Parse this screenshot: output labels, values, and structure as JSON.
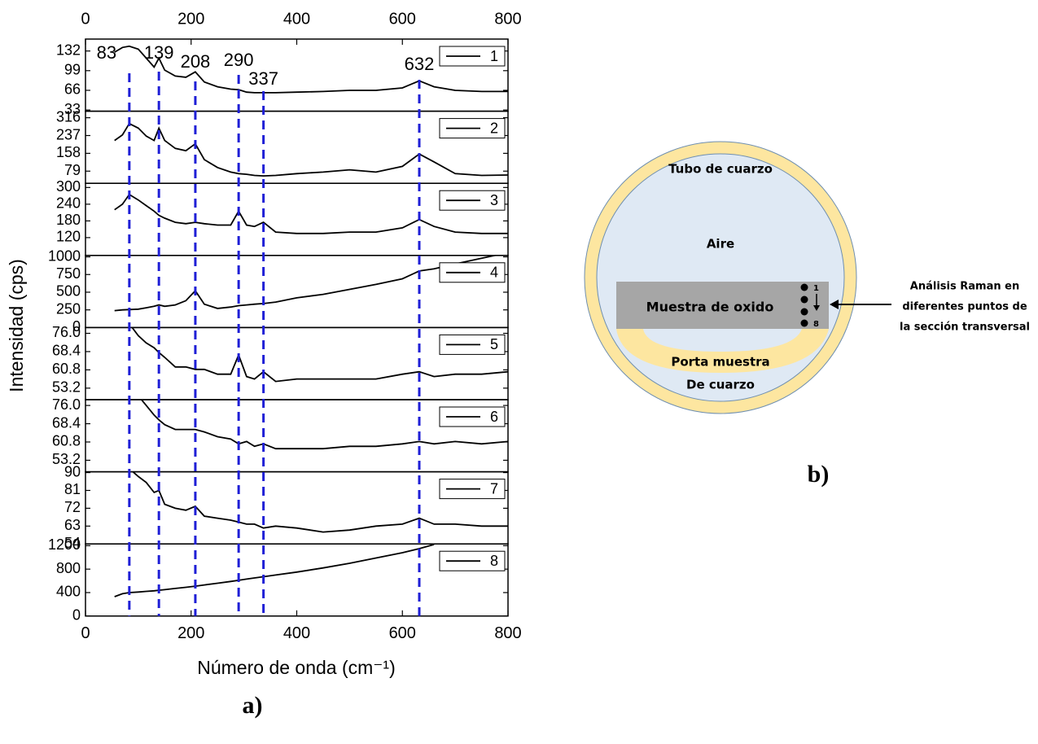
{
  "chart_data": [
    {
      "type": "line",
      "x": [
        55,
        70,
        83,
        100,
        115,
        130,
        139,
        150,
        170,
        190,
        208,
        225,
        250,
        275,
        290,
        305,
        320,
        337,
        360,
        400,
        450,
        500,
        550,
        600,
        632,
        660,
        700,
        750,
        800
      ],
      "series": [
        {
          "name": "1",
          "color": "#000000",
          "values": [
            130,
            138,
            140,
            135,
            120,
            105,
            120,
            100,
            90,
            88,
            97,
            80,
            72,
            68,
            67,
            63,
            62,
            62,
            62,
            63,
            64,
            66,
            66,
            70,
            82,
            72,
            66,
            64,
            64
          ]
        }
      ],
      "xlim": [
        0,
        800
      ],
      "xticks": [
        0,
        200,
        400,
        600,
        800
      ],
      "ylim": [
        31,
        152
      ],
      "yticks": [
        33,
        66,
        99,
        132
      ],
      "legend": "upper right"
    },
    {
      "type": "line",
      "x": [
        55,
        70,
        83,
        100,
        115,
        130,
        139,
        150,
        170,
        190,
        208,
        225,
        250,
        275,
        290,
        305,
        320,
        337,
        360,
        400,
        450,
        500,
        550,
        600,
        632,
        660,
        700,
        750,
        800
      ],
      "series": [
        {
          "name": "2",
          "color": "#000000",
          "values": [
            215,
            240,
            290,
            270,
            235,
            215,
            270,
            215,
            180,
            170,
            200,
            130,
            95,
            75,
            68,
            65,
            60,
            58,
            60,
            68,
            75,
            85,
            75,
            100,
            155,
            120,
            68,
            60,
            62
          ]
        }
      ],
      "xlim": [
        0,
        800
      ],
      "ylim": [
        25,
        345
      ],
      "yticks": [
        79,
        158,
        237,
        316
      ],
      "legend": "upper right"
    },
    {
      "type": "line",
      "x": [
        55,
        70,
        83,
        100,
        115,
        130,
        139,
        150,
        170,
        190,
        208,
        225,
        250,
        275,
        290,
        305,
        320,
        337,
        360,
        400,
        450,
        500,
        550,
        600,
        632,
        660,
        700,
        750,
        800
      ],
      "series": [
        {
          "name": "3",
          "color": "#000000",
          "values": [
            220,
            240,
            275,
            255,
            235,
            215,
            200,
            190,
            175,
            170,
            175,
            170,
            165,
            165,
            215,
            165,
            160,
            175,
            140,
            135,
            135,
            140,
            140,
            155,
            185,
            160,
            140,
            135,
            135
          ]
        }
      ],
      "xlim": [
        0,
        800
      ],
      "ylim": [
        56,
        315
      ],
      "yticks": [
        120,
        180,
        240,
        300
      ],
      "legend": "upper right"
    },
    {
      "type": "line",
      "x": [
        55,
        70,
        83,
        100,
        115,
        130,
        139,
        150,
        170,
        190,
        208,
        225,
        250,
        275,
        290,
        305,
        320,
        337,
        360,
        400,
        450,
        500,
        550,
        600,
        632,
        660,
        700,
        750,
        800
      ],
      "series": [
        {
          "name": "4",
          "color": "#000000",
          "values": [
            240,
            250,
            255,
            260,
            280,
            300,
            320,
            300,
            320,
            380,
            520,
            330,
            270,
            290,
            310,
            320,
            330,
            340,
            360,
            420,
            470,
            540,
            610,
            690,
            800,
            830,
            900,
            980,
            1060
          ]
        }
      ],
      "xlim": [
        0,
        800
      ],
      "ylim": [
        0,
        1020
      ],
      "yticks": [
        0,
        250,
        500,
        750,
        1000
      ],
      "legend": "upper right"
    },
    {
      "type": "line",
      "x": [
        55,
        70,
        83,
        100,
        115,
        130,
        139,
        150,
        170,
        190,
        208,
        225,
        250,
        275,
        290,
        305,
        320,
        337,
        360,
        400,
        450,
        500,
        550,
        600,
        632,
        660,
        700,
        750,
        800
      ],
      "series": [
        {
          "name": "5",
          "color": "#000000",
          "values": [
            null,
            null,
            80,
            75,
            72,
            70,
            68,
            66,
            62,
            62,
            61,
            61,
            59,
            59,
            67,
            58,
            57,
            60,
            56,
            57,
            57,
            57,
            57,
            59,
            60,
            58,
            59,
            59,
            60
          ]
        }
      ],
      "xlim": [
        0,
        800
      ],
      "ylim": [
        48.4,
        78.4
      ],
      "yticks": [
        53.2,
        60.8,
        68.4,
        {
          "value": 76,
          "label": "76.0"
        }
      ],
      "legend": "upper right"
    },
    {
      "type": "line",
      "x": [
        55,
        70,
        83,
        100,
        115,
        130,
        139,
        150,
        170,
        190,
        208,
        225,
        250,
        275,
        290,
        305,
        320,
        337,
        360,
        400,
        450,
        500,
        550,
        600,
        632,
        660,
        700,
        750,
        800
      ],
      "series": [
        {
          "name": "6",
          "color": "#000000",
          "values": [
            null,
            null,
            null,
            80,
            76,
            72,
            70,
            68,
            66,
            66,
            66,
            65,
            63,
            62,
            60,
            61,
            59,
            60,
            58,
            58,
            58,
            59,
            59,
            60,
            61,
            60,
            61,
            60,
            61
          ]
        }
      ],
      "xlim": [
        0,
        800
      ],
      "ylim": [
        48.4,
        78.4
      ],
      "yticks": [
        53.2,
        60.8,
        68.4,
        {
          "value": 76,
          "label": "76.0"
        }
      ],
      "legend": "upper right"
    },
    {
      "type": "line",
      "x": [
        55,
        70,
        83,
        100,
        115,
        130,
        139,
        150,
        170,
        190,
        208,
        225,
        250,
        275,
        290,
        305,
        320,
        337,
        360,
        400,
        450,
        500,
        550,
        600,
        632,
        660,
        700,
        750,
        800
      ],
      "series": [
        {
          "name": "7",
          "color": "#000000",
          "values": [
            null,
            null,
            92,
            88,
            85,
            80,
            81,
            74,
            72,
            71,
            73,
            68,
            67,
            66,
            65,
            64,
            64,
            62,
            63,
            62,
            60,
            61,
            63,
            64,
            67,
            64,
            64,
            63,
            63
          ]
        }
      ],
      "xlim": [
        0,
        800
      ],
      "ylim": [
        54,
        90.4
      ],
      "yticks": [
        54,
        63,
        72,
        81,
        90
      ],
      "legend": "upper right"
    },
    {
      "type": "line",
      "x": [
        55,
        70,
        83,
        100,
        115,
        130,
        139,
        150,
        170,
        190,
        208,
        225,
        250,
        275,
        290,
        305,
        320,
        337,
        360,
        400,
        450,
        500,
        550,
        600,
        632,
        660,
        700,
        750,
        800
      ],
      "series": [
        {
          "name": "8",
          "color": "#000000",
          "values": [
            330,
            380,
            400,
            410,
            420,
            430,
            440,
            450,
            470,
            490,
            510,
            530,
            560,
            590,
            610,
            630,
            650,
            670,
            700,
            750,
            820,
            900,
            990,
            1080,
            1150,
            1220,
            null,
            null,
            null
          ]
        }
      ],
      "xlim": [
        0,
        800
      ],
      "xticks": [
        0,
        200,
        400,
        600,
        800
      ],
      "ylim": [
        0,
        1230
      ],
      "yticks": [
        0,
        400,
        800,
        1200
      ],
      "legend": "upper right"
    }
  ],
  "figure": {
    "x_label": "Número de onda (cm⁻¹)",
    "y_label": "Intensidad (cps)",
    "peaks": [
      83,
      139,
      208,
      290,
      337,
      632
    ],
    "peak_color": "#1f1fd6",
    "panel_a": "a)",
    "panel_b": "b)"
  },
  "diagram": {
    "outer": "Tubo de cuarzo",
    "inner": "Aire",
    "sample": "Muestra de oxido",
    "holder": [
      "Porta muestra",
      "De cuarzo"
    ],
    "point_first": "1",
    "point_last": "8",
    "note": [
      "Análisis Raman en",
      "diferentes puntos de",
      "la sección transversal"
    ]
  }
}
